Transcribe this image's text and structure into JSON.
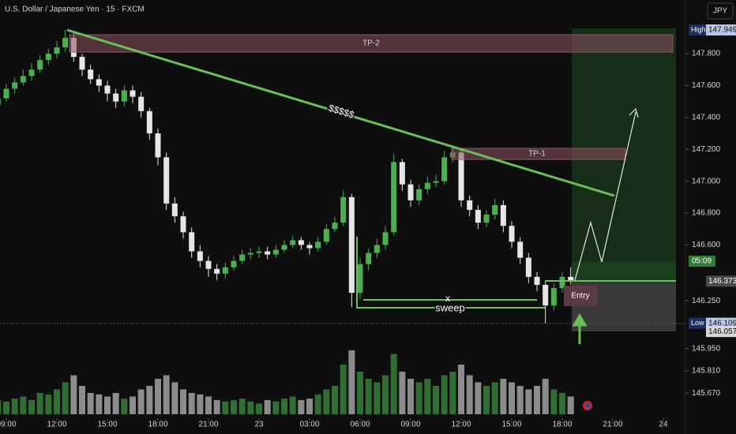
{
  "chart_data": {
    "type": "candlestick",
    "title": "U.S. Dollar / Japanese Yen · 15 · FXCM",
    "currency": "JPY",
    "open": [
      147.48,
      147.52,
      147.58,
      147.62,
      147.66,
      147.7,
      147.76,
      147.8,
      147.84,
      147.9,
      147.78,
      147.7,
      147.64,
      147.6,
      147.55,
      147.5,
      147.57,
      147.53,
      147.44,
      147.3,
      147.15,
      146.86,
      146.78,
      146.68,
      146.56,
      146.5,
      146.45,
      146.42,
      146.46,
      146.5,
      146.54,
      146.55,
      146.56,
      146.54,
      146.57,
      146.6,
      146.63,
      146.6,
      146.58,
      146.62,
      146.7,
      146.74,
      146.9,
      146.3,
      146.48,
      146.55,
      146.6,
      146.68,
      147.12,
      146.98,
      146.88,
      146.95,
      146.99,
      147.0,
      147.15,
      147.18,
      146.88,
      146.82,
      146.74,
      146.79,
      146.85,
      146.72,
      146.62,
      146.52,
      146.4,
      146.35,
      146.22,
      146.33,
      146.4
    ],
    "high": [
      147.56,
      147.61,
      147.65,
      147.7,
      147.74,
      147.79,
      147.83,
      147.88,
      147.949,
      147.93,
      147.8,
      147.73,
      147.67,
      147.63,
      147.58,
      147.6,
      147.6,
      147.56,
      147.46,
      147.33,
      147.18,
      146.9,
      146.81,
      146.71,
      146.6,
      146.53,
      146.48,
      146.49,
      146.53,
      146.57,
      146.58,
      146.59,
      146.59,
      146.6,
      146.63,
      146.66,
      146.65,
      146.62,
      146.65,
      146.73,
      146.78,
      146.94,
      146.92,
      146.52,
      146.58,
      146.64,
      146.72,
      147.17,
      147.14,
      147.01,
      146.98,
      147.03,
      147.04,
      147.19,
      147.22,
      147.2,
      146.91,
      146.85,
      146.82,
      146.89,
      146.88,
      146.75,
      146.65,
      146.55,
      146.43,
      146.38,
      146.36,
      146.43,
      146.46
    ],
    "low": [
      147.45,
      147.5,
      147.55,
      147.6,
      147.63,
      147.68,
      147.73,
      147.77,
      147.81,
      147.75,
      147.66,
      147.61,
      147.56,
      147.5,
      147.46,
      147.47,
      147.49,
      147.4,
      147.26,
      147.1,
      146.82,
      146.74,
      146.64,
      146.52,
      146.46,
      146.4,
      146.38,
      146.39,
      146.44,
      146.48,
      146.51,
      146.52,
      146.51,
      146.52,
      146.55,
      146.58,
      146.57,
      146.54,
      146.56,
      146.6,
      146.68,
      146.72,
      146.21,
      146.26,
      146.44,
      146.52,
      146.57,
      146.66,
      146.94,
      146.84,
      146.85,
      146.92,
      146.96,
      146.98,
      147.12,
      146.84,
      146.78,
      146.7,
      146.71,
      146.76,
      146.68,
      146.58,
      146.48,
      146.36,
      146.31,
      146.109,
      146.19,
      146.3,
      146.35
    ],
    "close": [
      147.52,
      147.58,
      147.62,
      147.66,
      147.7,
      147.76,
      147.8,
      147.84,
      147.9,
      147.78,
      147.7,
      147.64,
      147.6,
      147.55,
      147.5,
      147.57,
      147.53,
      147.44,
      147.3,
      147.15,
      146.86,
      146.78,
      146.68,
      146.56,
      146.5,
      146.45,
      146.42,
      146.46,
      146.5,
      146.54,
      146.55,
      146.56,
      146.54,
      146.57,
      146.6,
      146.63,
      146.6,
      146.58,
      146.62,
      146.7,
      146.74,
      146.9,
      146.3,
      146.48,
      146.55,
      146.6,
      146.68,
      147.12,
      146.98,
      146.88,
      146.95,
      146.99,
      147.0,
      147.15,
      147.18,
      146.88,
      146.82,
      146.74,
      146.79,
      146.85,
      146.72,
      146.62,
      146.52,
      146.4,
      146.35,
      146.22,
      146.33,
      146.4,
      146.373
    ],
    "volume": [
      20,
      18,
      22,
      25,
      20,
      30,
      28,
      35,
      45,
      55,
      40,
      30,
      28,
      25,
      30,
      22,
      25,
      35,
      40,
      50,
      55,
      45,
      35,
      30,
      28,
      25,
      20,
      18,
      20,
      22,
      18,
      15,
      20,
      18,
      22,
      25,
      20,
      22,
      28,
      35,
      40,
      70,
      90,
      60,
      50,
      45,
      55,
      85,
      60,
      50,
      45,
      50,
      40,
      55,
      60,
      70,
      55,
      45,
      40,
      45,
      50,
      45,
      40,
      35,
      40,
      50,
      35,
      30,
      25
    ],
    "up_color": "#4caf50",
    "down_color": "#e6e6e6",
    "up_volume_color": "#2f6f32",
    "down_volume_color": "#8c8c8c",
    "ylim": [
      145.513,
      148.137
    ],
    "yticks": [
      {
        "value": 147.8,
        "label": "147.800"
      },
      {
        "value": 147.6,
        "label": "147.600"
      },
      {
        "value": 147.4,
        "label": "147.400"
      },
      {
        "value": 147.2,
        "label": "147.200"
      },
      {
        "value": 147.0,
        "label": "147.000"
      },
      {
        "value": 146.8,
        "label": "146.800"
      },
      {
        "value": 146.6,
        "label": "146.600"
      },
      {
        "value": 146.25,
        "label": "146.250"
      },
      {
        "value": 145.95,
        "label": "145.950"
      },
      {
        "value": 145.81,
        "label": "145.810"
      },
      {
        "value": 145.67,
        "label": "145.670"
      }
    ],
    "xticks": [
      {
        "value": 1,
        "label": "09:00"
      },
      {
        "value": 7,
        "label": "12:00"
      },
      {
        "value": 13,
        "label": "15:00"
      },
      {
        "value": 19,
        "label": "18:00"
      },
      {
        "value": 25,
        "label": "21:00"
      },
      {
        "value": 31,
        "label": "23"
      },
      {
        "value": 37,
        "label": "03:00"
      },
      {
        "value": 43,
        "label": "06:00"
      },
      {
        "value": 49,
        "label": "09:00"
      },
      {
        "value": 55,
        "label": "12:00"
      },
      {
        "value": 61,
        "label": "15:00"
      },
      {
        "value": 67,
        "label": "18:00"
      },
      {
        "value": 73,
        "label": "21:00"
      },
      {
        "value": 79,
        "label": "24"
      }
    ],
    "price_labels": [
      {
        "label": "High",
        "value": 147.949
      },
      {
        "label": "Low",
        "value": 146.109
      },
      {
        "value": 146.057
      },
      {
        "value": 146.373
      }
    ],
    "countdown": "05:09",
    "annotations": {
      "tp2": "TP-2",
      "tp1": "TP-1",
      "liquidity": "$$$$$",
      "mark": "x",
      "sweep": "sweep",
      "entry": "Entry"
    }
  }
}
